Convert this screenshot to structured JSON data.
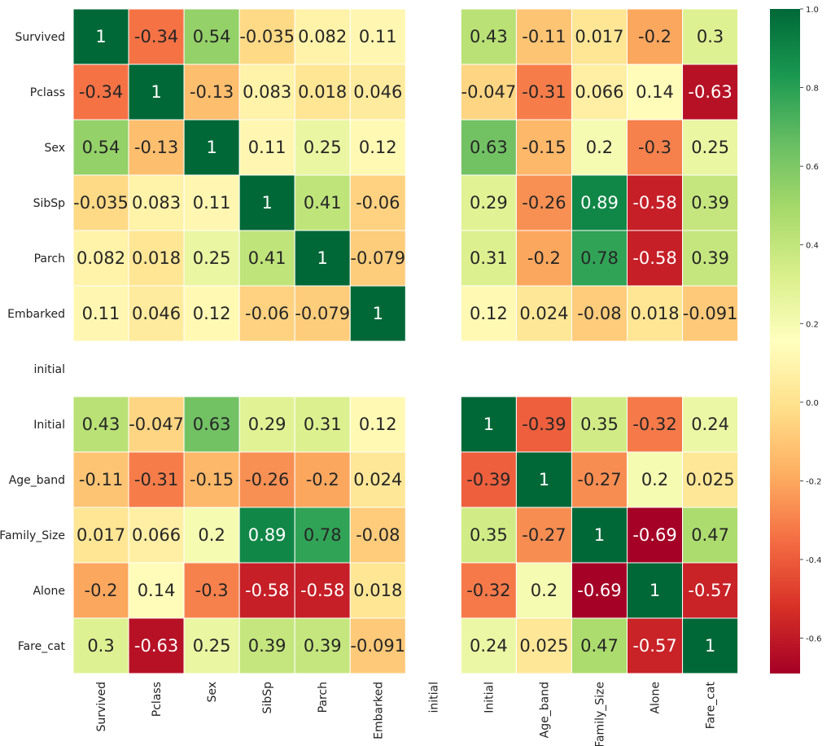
{
  "chart_data": {
    "type": "heatmap",
    "title": "",
    "colormap": "RdYlGn",
    "vmin": -0.69,
    "vmax": 1.0,
    "row_labels": [
      "Survived",
      "Pclass",
      "Sex",
      "SibSp",
      "Parch",
      "Embarked",
      "initial",
      "Initial",
      "Age_band",
      "Family_Size",
      "Alone",
      "Fare_cat"
    ],
    "col_labels": [
      "Survived",
      "Pclass",
      "Sex",
      "SibSp",
      "Parch",
      "Embarked",
      "initial",
      "Initial",
      "Age_band",
      "Family_Size",
      "Alone",
      "Fare_cat"
    ],
    "values": [
      [
        1,
        -0.34,
        0.54,
        -0.035,
        0.082,
        0.11,
        null,
        0.43,
        -0.11,
        0.017,
        -0.2,
        0.3
      ],
      [
        -0.34,
        1,
        -0.13,
        0.083,
        0.018,
        0.046,
        null,
        -0.047,
        -0.31,
        0.066,
        0.14,
        -0.63
      ],
      [
        0.54,
        -0.13,
        1,
        0.11,
        0.25,
        0.12,
        null,
        0.63,
        -0.15,
        0.2,
        -0.3,
        0.25
      ],
      [
        -0.035,
        0.083,
        0.11,
        1,
        0.41,
        -0.06,
        null,
        0.29,
        -0.26,
        0.89,
        -0.58,
        0.39
      ],
      [
        0.082,
        0.018,
        0.25,
        0.41,
        1,
        -0.079,
        null,
        0.31,
        -0.2,
        0.78,
        -0.58,
        0.39
      ],
      [
        0.11,
        0.046,
        0.12,
        -0.06,
        -0.079,
        1,
        null,
        0.12,
        0.024,
        -0.08,
        0.018,
        -0.091
      ],
      [
        null,
        null,
        null,
        null,
        null,
        null,
        null,
        null,
        null,
        null,
        null,
        null
      ],
      [
        0.43,
        -0.047,
        0.63,
        0.29,
        0.31,
        0.12,
        null,
        1,
        -0.39,
        0.35,
        -0.32,
        0.24
      ],
      [
        -0.11,
        -0.31,
        -0.15,
        -0.26,
        -0.2,
        0.024,
        null,
        -0.39,
        1,
        -0.27,
        0.2,
        0.025
      ],
      [
        0.017,
        0.066,
        0.2,
        0.89,
        0.78,
        -0.08,
        null,
        0.35,
        -0.27,
        1,
        -0.69,
        0.47
      ],
      [
        -0.2,
        0.14,
        -0.3,
        -0.58,
        -0.58,
        0.018,
        null,
        -0.32,
        0.2,
        -0.69,
        1,
        -0.57
      ],
      [
        0.3,
        -0.63,
        0.25,
        0.39,
        0.39,
        -0.091,
        null,
        0.24,
        0.025,
        0.47,
        -0.57,
        1
      ]
    ],
    "labels": [
      [
        "1",
        "-0.34",
        "0.54",
        "-0.035",
        "0.082",
        "0.11",
        "",
        "0.43",
        "-0.11",
        "0.017",
        "-0.2",
        "0.3"
      ],
      [
        "-0.34",
        "1",
        "-0.13",
        "0.083",
        "0.018",
        "0.046",
        "",
        "-0.047",
        "-0.31",
        "0.066",
        "0.14",
        "-0.63"
      ],
      [
        "0.54",
        "-0.13",
        "1",
        "0.11",
        "0.25",
        "0.12",
        "",
        "0.63",
        "-0.15",
        "0.2",
        "-0.3",
        "0.25"
      ],
      [
        "-0.035",
        "0.083",
        "0.11",
        "1",
        "0.41",
        "-0.06",
        "",
        "0.29",
        "-0.26",
        "0.89",
        "-0.58",
        "0.39"
      ],
      [
        "0.082",
        "0.018",
        "0.25",
        "0.41",
        "1",
        "-0.079",
        "",
        "0.31",
        "-0.2",
        "0.78",
        "-0.58",
        "0.39"
      ],
      [
        "0.11",
        "0.046",
        "0.12",
        "-0.06",
        "-0.079",
        "1",
        "",
        "0.12",
        "0.024",
        "-0.08",
        "0.018",
        "-0.091"
      ],
      [
        "",
        "",
        "",
        "",
        "",
        "",
        "",
        "",
        "",
        "",
        "",
        ""
      ],
      [
        "0.43",
        "-0.047",
        "0.63",
        "0.29",
        "0.31",
        "0.12",
        "",
        "1",
        "-0.39",
        "0.35",
        "-0.32",
        "0.24"
      ],
      [
        "-0.11",
        "-0.31",
        "-0.15",
        "-0.26",
        "-0.2",
        "0.024",
        "",
        "-0.39",
        "1",
        "-0.27",
        "0.2",
        "0.025"
      ],
      [
        "0.017",
        "0.066",
        "0.2",
        "0.89",
        "0.78",
        "-0.08",
        "",
        "0.35",
        "-0.27",
        "1",
        "-0.69",
        "0.47"
      ],
      [
        "-0.2",
        "0.14",
        "-0.3",
        "-0.58",
        "-0.58",
        "0.018",
        "",
        "-0.32",
        "0.2",
        "-0.69",
        "1",
        "-0.57"
      ],
      [
        "0.3",
        "-0.63",
        "0.25",
        "0.39",
        "0.39",
        "-0.091",
        "",
        "0.24",
        "0.025",
        "0.47",
        "-0.57",
        "1"
      ]
    ],
    "colorbar": {
      "ticks": [
        1.0,
        0.8,
        0.6,
        0.4,
        0.2,
        0.0,
        -0.2,
        -0.4,
        -0.6
      ],
      "tick_labels": [
        "1.0",
        "0.8",
        "0.6",
        "0.4",
        "0.2",
        "0.0",
        "-0.2",
        "-0.4",
        "-0.6"
      ]
    },
    "grid_line_color": "#ffffff",
    "text_color_dark": "#262626",
    "text_color_light": "#ffffff"
  }
}
